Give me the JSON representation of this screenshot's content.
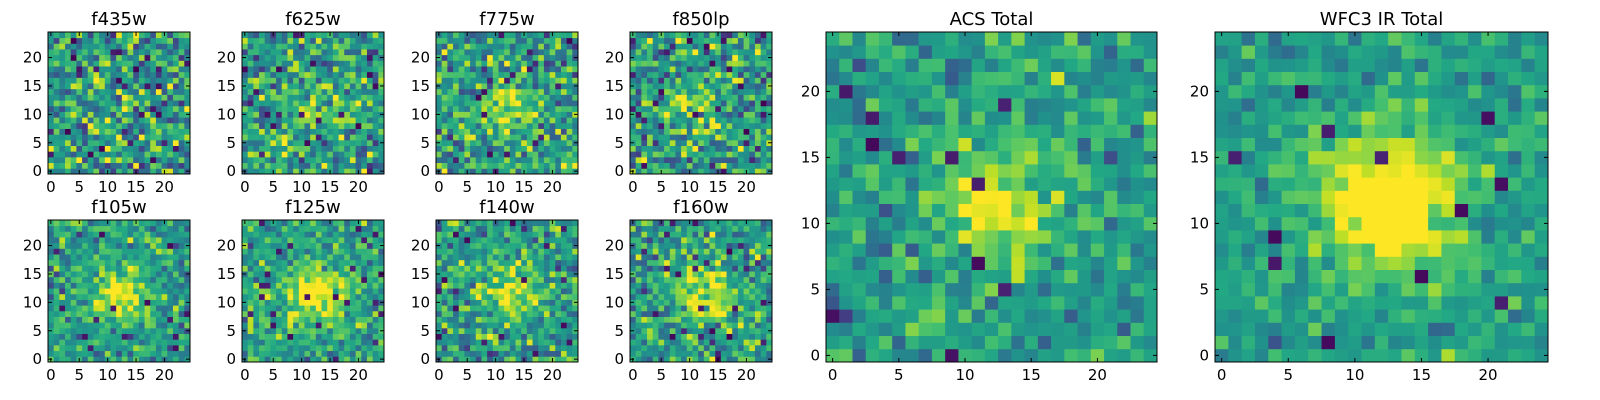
{
  "chart_data": [
    {
      "type": "heatmap",
      "title": "f435w",
      "seed": 11,
      "peak": 0.05,
      "noise": 0.62,
      "spread": 3.0,
      "x_ticks": [
        "0",
        "5",
        "10",
        "15",
        "20"
      ],
      "y_ticks": [
        "0",
        "5",
        "10",
        "15",
        "20"
      ],
      "xlim": [
        0,
        24
      ],
      "ylim": [
        0,
        24
      ],
      "colormap": "viridis"
    },
    {
      "type": "heatmap",
      "title": "f625w",
      "seed": 23,
      "peak": 0.18,
      "noise": 0.55,
      "spread": 3.5,
      "x_ticks": [
        "0",
        "5",
        "10",
        "15",
        "20"
      ],
      "y_ticks": [
        "0",
        "5",
        "10",
        "15",
        "20"
      ],
      "xlim": [
        0,
        24
      ],
      "ylim": [
        0,
        24
      ],
      "colormap": "viridis"
    },
    {
      "type": "heatmap",
      "title": "f775w",
      "seed": 37,
      "peak": 0.3,
      "noise": 0.55,
      "spread": 3.2,
      "x_ticks": [
        "0",
        "5",
        "10",
        "15",
        "20"
      ],
      "y_ticks": [
        "0",
        "5",
        "10",
        "15",
        "20"
      ],
      "xlim": [
        0,
        24
      ],
      "ylim": [
        0,
        24
      ],
      "colormap": "viridis"
    },
    {
      "type": "heatmap",
      "title": "f850lp",
      "seed": 41,
      "peak": 0.22,
      "noise": 0.58,
      "spread": 3.2,
      "x_ticks": [
        "0",
        "5",
        "10",
        "15",
        "20"
      ],
      "y_ticks": [
        "0",
        "5",
        "10",
        "15",
        "20"
      ],
      "xlim": [
        0,
        24
      ],
      "ylim": [
        0,
        24
      ],
      "colormap": "viridis"
    },
    {
      "type": "heatmap",
      "title": "f105w",
      "seed": 53,
      "peak": 0.4,
      "noise": 0.42,
      "spread": 3.6,
      "x_ticks": [
        "0",
        "5",
        "10",
        "15",
        "20"
      ],
      "y_ticks": [
        "0",
        "5",
        "10",
        "15",
        "20"
      ],
      "xlim": [
        0,
        24
      ],
      "ylim": [
        0,
        24
      ],
      "colormap": "viridis"
    },
    {
      "type": "heatmap",
      "title": "f125w",
      "seed": 67,
      "peak": 0.48,
      "noise": 0.4,
      "spread": 3.6,
      "x_ticks": [
        "0",
        "5",
        "10",
        "15",
        "20"
      ],
      "y_ticks": [
        "0",
        "5",
        "10",
        "15",
        "20"
      ],
      "xlim": [
        0,
        24
      ],
      "ylim": [
        0,
        24
      ],
      "colormap": "viridis"
    },
    {
      "type": "heatmap",
      "title": "f140w",
      "seed": 79,
      "peak": 0.34,
      "noise": 0.48,
      "spread": 3.6,
      "x_ticks": [
        "0",
        "5",
        "10",
        "15",
        "20"
      ],
      "y_ticks": [
        "0",
        "5",
        "10",
        "15",
        "20"
      ],
      "xlim": [
        0,
        24
      ],
      "ylim": [
        0,
        24
      ],
      "colormap": "viridis"
    },
    {
      "type": "heatmap",
      "title": "f160w",
      "seed": 83,
      "peak": 0.36,
      "noise": 0.5,
      "spread": 3.6,
      "x_ticks": [
        "0",
        "5",
        "10",
        "15",
        "20"
      ],
      "y_ticks": [
        "0",
        "5",
        "10",
        "15",
        "20"
      ],
      "xlim": [
        0,
        24
      ],
      "ylim": [
        0,
        24
      ],
      "colormap": "viridis"
    },
    {
      "type": "heatmap",
      "title": "ACS Total",
      "seed": 97,
      "peak": 0.4,
      "noise": 0.36,
      "spread": 3.4,
      "x_ticks": [
        "0",
        "5",
        "10",
        "15",
        "20"
      ],
      "y_ticks": [
        "0",
        "5",
        "10",
        "15",
        "20"
      ],
      "xlim": [
        0,
        24
      ],
      "ylim": [
        0,
        24
      ],
      "colormap": "viridis"
    },
    {
      "type": "heatmap",
      "title": "WFC3 IR Total",
      "seed": 101,
      "peak": 0.62,
      "noise": 0.26,
      "spread": 3.8,
      "x_ticks": [
        "0",
        "5",
        "10",
        "15",
        "20"
      ],
      "y_ticks": [
        "0",
        "5",
        "10",
        "15",
        "20"
      ],
      "xlim": [
        0,
        24
      ],
      "ylim": [
        0,
        24
      ],
      "colormap": "viridis"
    }
  ]
}
